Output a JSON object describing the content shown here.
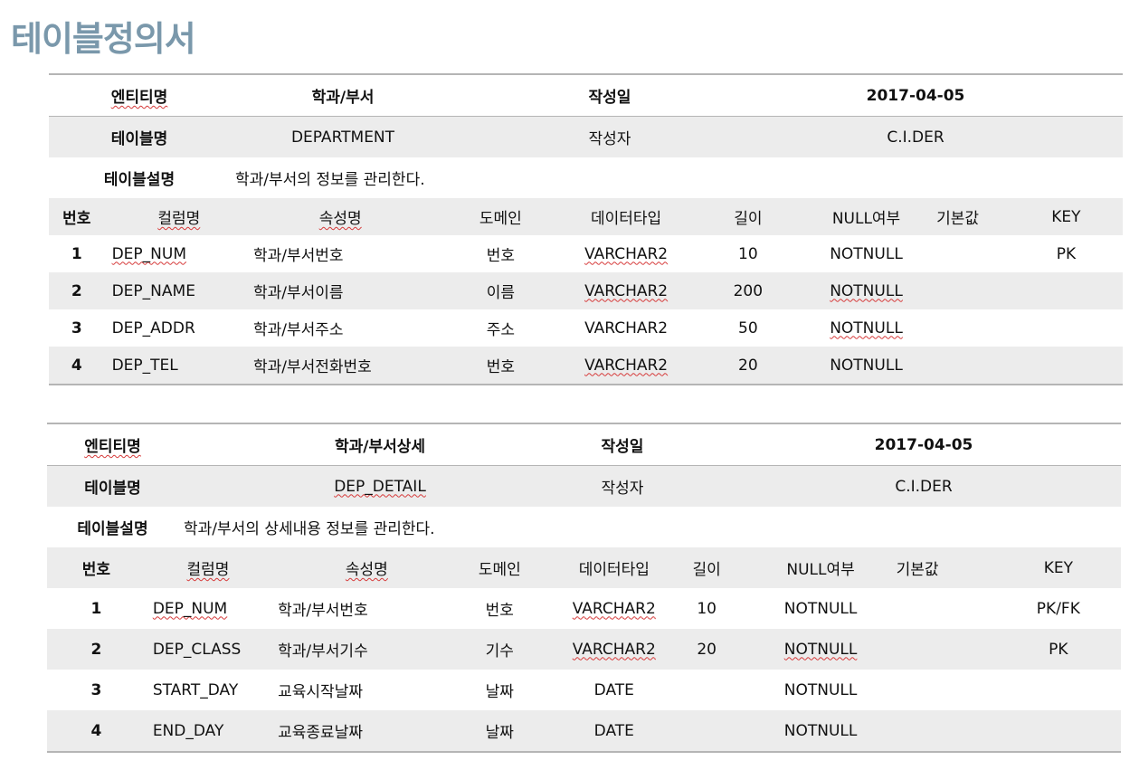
{
  "page_title": "테이블정의서",
  "tables": [
    {
      "meta": {
        "entity_label": "엔티티명",
        "entity_value": "학과/부서",
        "date_label": "작성일",
        "date_value": "2017-04-05",
        "table_label": "테이블명",
        "table_value": "DEPARTMENT",
        "author_label": "작성자",
        "author_value": "C.I.DER",
        "desc_label": "테이블설명",
        "desc_value": "학과/부서의 정보를 관리한다."
      },
      "columns": [
        "번호",
        "컬럼명",
        "속성명",
        "도메인",
        "데이터타입",
        "길이",
        "NULL여부",
        "기본값",
        "KEY"
      ],
      "rows": [
        [
          "1",
          "DEP_NUM",
          "학과/부서번호",
          "번호",
          "VARCHAR2",
          "10",
          "NOTNULL",
          "",
          "PK"
        ],
        [
          "2",
          "DEP_NAME",
          "학과/부서이름",
          "이름",
          "VARCHAR2",
          "200",
          "NOTNULL",
          "",
          ""
        ],
        [
          "3",
          "DEP_ADDR",
          "학과/부서주소",
          "주소",
          "VARCHAR2",
          "50",
          "NOTNULL",
          "",
          ""
        ],
        [
          "4",
          "DEP_TEL",
          "학과/부서전화번호",
          "번호",
          "VARCHAR2",
          "20",
          "NOTNULL",
          "",
          ""
        ]
      ]
    },
    {
      "meta": {
        "entity_label": "엔티티명",
        "entity_value": "학과/부서상세",
        "date_label": "작성일",
        "date_value": "2017-04-05",
        "table_label": "테이블명",
        "table_value": "DEP_DETAIL",
        "author_label": "작성자",
        "author_value": "C.I.DER",
        "desc_label": "테이블설명",
        "desc_value": "학과/부서의 상세내용 정보를 관리한다."
      },
      "columns": [
        "번호",
        "컬럼명",
        "속성명",
        "도메인",
        "데이터타입",
        "길이",
        "NULL여부",
        "기본값",
        "KEY"
      ],
      "rows": [
        [
          "1",
          "DEP_NUM",
          "학과/부서번호",
          "번호",
          "VARCHAR2",
          "10",
          "NOTNULL",
          "",
          "PK/FK"
        ],
        [
          "2",
          "DEP_CLASS",
          "학과/부서기수",
          "기수",
          "VARCHAR2",
          "20",
          "NOTNULL",
          "",
          "PK"
        ],
        [
          "3",
          "START_DAY",
          "교육시작날짜",
          "날짜",
          "DATE",
          "",
          "NOTNULL",
          "",
          ""
        ],
        [
          "4",
          "END_DAY",
          "교육종료날짜",
          "날짜",
          "DATE",
          "",
          "NOTNULL",
          "",
          ""
        ]
      ]
    }
  ]
}
